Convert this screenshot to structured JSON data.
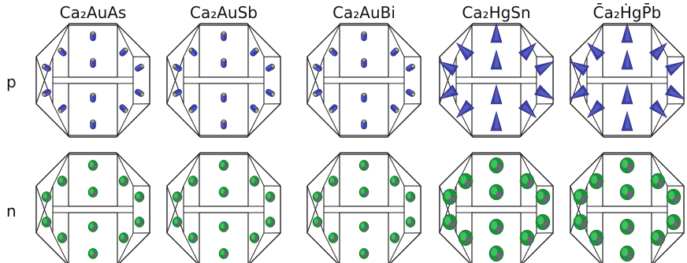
{
  "columns": [
    {
      "title": "Ca₂AuAs"
    },
    {
      "title": "Ca₂AuSb"
    },
    {
      "title": "Ca₂AuBi"
    },
    {
      "title": "Ca₂HgSn"
    },
    {
      "title": "C̄a₂ḢgP̄b"
    }
  ],
  "rows": [
    {
      "label": "p",
      "pocket_shape": "rod",
      "pocket_color": "#3b3fa8",
      "pocket_highlight": "#6b70d6",
      "pocket_accent": "#c8c020"
    },
    {
      "label": "n",
      "pocket_shape": "blob",
      "pocket_color": "#1f8f3a",
      "pocket_highlight": "#45cf66",
      "pocket_accent": "#b03cb0"
    }
  ],
  "colors": {
    "outline": "#222222",
    "background": "#ffffff"
  }
}
